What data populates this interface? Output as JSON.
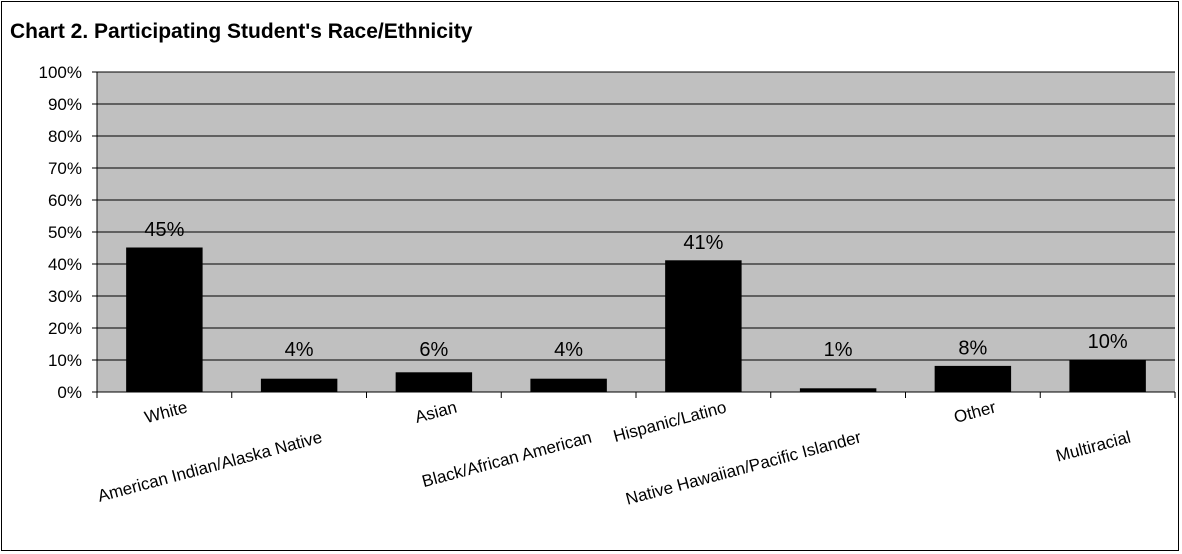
{
  "chart_data": {
    "type": "bar",
    "title": "Chart 2. Participating Student's Race/Ethnicity",
    "categories": [
      "White",
      "American Indian/Alaska Native",
      "Asian",
      "Black/African American",
      "Hispanic/Latino",
      "Native Hawaiian/Pacific Islander",
      "Other",
      "Multiracial"
    ],
    "values": [
      45,
      4,
      6,
      4,
      41,
      1,
      8,
      10
    ],
    "data_labels": [
      "45%",
      "4%",
      "6%",
      "4%",
      "41%",
      "1%",
      "8%",
      "10%"
    ],
    "y_ticks": [
      "0%",
      "10%",
      "20%",
      "30%",
      "40%",
      "50%",
      "60%",
      "70%",
      "80%",
      "90%",
      "100%"
    ],
    "ylim": [
      0,
      100
    ],
    "grid": true,
    "legend": "none",
    "colors": {
      "bar": "#000000",
      "plot_background": "#c0c0c0",
      "gridline": "#000000"
    }
  }
}
